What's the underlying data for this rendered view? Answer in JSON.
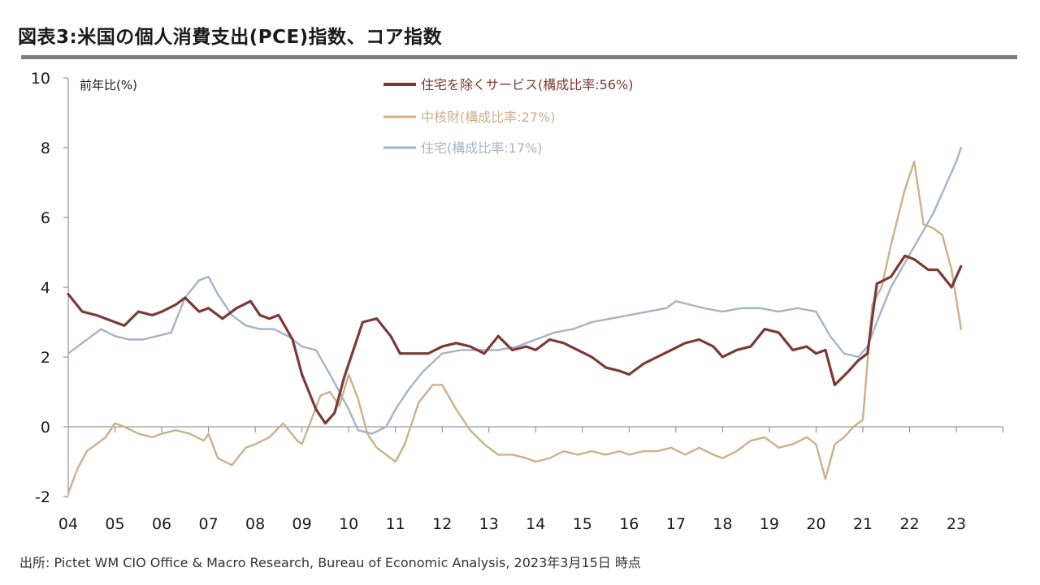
{
  "title": "図表3:米国の個人消費支出(PCE)指数、コア指数",
  "source": "出所: Pictet WM CIO Office & Macro Research, Bureau of Economic Analysis, 2023年3月15日 時点",
  "chart_data": {
    "type": "line",
    "ylabel": "前年比(%)",
    "ylim": [
      -2,
      10
    ],
    "yticks": [
      -2,
      0,
      2,
      4,
      6,
      8,
      10
    ],
    "xlim": [
      2004,
      2023.2
    ],
    "xticks": [
      "04",
      "05",
      "06",
      "07",
      "08",
      "09",
      "10",
      "11",
      "12",
      "13",
      "14",
      "15",
      "16",
      "17",
      "18",
      "19",
      "20",
      "21",
      "22",
      "23"
    ],
    "grid": false,
    "legend_position": "top-center",
    "series": [
      {
        "name": "住宅を除くサービス(構成比率:56%)",
        "color": "#7b3a33",
        "x": [
          2004.0,
          2004.3,
          2004.6,
          2005.0,
          2005.2,
          2005.5,
          2005.8,
          2006.0,
          2006.3,
          2006.5,
          2006.8,
          2007.0,
          2007.3,
          2007.6,
          2007.9,
          2008.1,
          2008.3,
          2008.5,
          2008.8,
          2009.0,
          2009.3,
          2009.5,
          2009.7,
          2009.9,
          2010.1,
          2010.3,
          2010.6,
          2010.9,
          2011.1,
          2011.4,
          2011.7,
          2012.0,
          2012.3,
          2012.6,
          2012.9,
          2013.2,
          2013.5,
          2013.8,
          2014.0,
          2014.3,
          2014.6,
          2014.9,
          2015.2,
          2015.5,
          2015.8,
          2016.0,
          2016.3,
          2016.6,
          2016.9,
          2017.2,
          2017.5,
          2017.8,
          2018.0,
          2018.3,
          2018.6,
          2018.9,
          2019.2,
          2019.5,
          2019.8,
          2020.0,
          2020.2,
          2020.4,
          2020.7,
          2020.9,
          2021.1,
          2021.3,
          2021.6,
          2021.9,
          2022.1,
          2022.4,
          2022.6,
          2022.9,
          2023.0,
          2023.1
        ],
        "values": [
          3.8,
          3.3,
          3.2,
          3.0,
          2.9,
          3.3,
          3.2,
          3.3,
          3.5,
          3.7,
          3.3,
          3.4,
          3.1,
          3.4,
          3.6,
          3.2,
          3.1,
          3.2,
          2.5,
          1.5,
          0.5,
          0.1,
          0.4,
          1.4,
          2.2,
          3.0,
          3.1,
          2.6,
          2.1,
          2.1,
          2.1,
          2.3,
          2.4,
          2.3,
          2.1,
          2.6,
          2.2,
          2.3,
          2.2,
          2.5,
          2.4,
          2.2,
          2.0,
          1.7,
          1.6,
          1.5,
          1.8,
          2.0,
          2.2,
          2.4,
          2.5,
          2.3,
          2.0,
          2.2,
          2.3,
          2.8,
          2.7,
          2.2,
          2.3,
          2.1,
          2.2,
          1.2,
          1.6,
          1.9,
          2.1,
          4.1,
          4.3,
          4.9,
          4.8,
          4.5,
          4.5,
          4.0,
          4.3,
          4.6
        ]
      },
      {
        "name": "中核財(構成比率:27%)",
        "color": "#cdb08a",
        "x": [
          2004.0,
          2004.2,
          2004.4,
          2004.6,
          2004.8,
          2005.0,
          2005.2,
          2005.5,
          2005.8,
          2006.0,
          2006.3,
          2006.6,
          2006.9,
          2007.0,
          2007.2,
          2007.5,
          2007.8,
          2008.0,
          2008.3,
          2008.6,
          2008.9,
          2009.0,
          2009.2,
          2009.4,
          2009.6,
          2009.8,
          2010.0,
          2010.2,
          2010.4,
          2010.6,
          2010.8,
          2011.0,
          2011.2,
          2011.5,
          2011.8,
          2012.0,
          2012.3,
          2012.6,
          2012.9,
          2013.2,
          2013.5,
          2013.8,
          2014.0,
          2014.3,
          2014.6,
          2014.9,
          2015.2,
          2015.5,
          2015.8,
          2016.0,
          2016.3,
          2016.6,
          2016.9,
          2017.2,
          2017.5,
          2017.8,
          2018.0,
          2018.3,
          2018.6,
          2018.9,
          2019.2,
          2019.5,
          2019.8,
          2020.0,
          2020.2,
          2020.4,
          2020.6,
          2020.8,
          2021.0,
          2021.2,
          2021.4,
          2021.6,
          2021.9,
          2022.1,
          2022.3,
          2022.5,
          2022.7,
          2022.9,
          2023.1
        ],
        "values": [
          -1.9,
          -1.2,
          -0.7,
          -0.5,
          -0.3,
          0.1,
          0.0,
          -0.2,
          -0.3,
          -0.2,
          -0.1,
          -0.2,
          -0.4,
          -0.2,
          -0.9,
          -1.1,
          -0.6,
          -0.5,
          -0.3,
          0.1,
          -0.4,
          -0.5,
          0.2,
          0.9,
          1.0,
          0.6,
          1.5,
          0.8,
          -0.2,
          -0.6,
          -0.8,
          -1.0,
          -0.5,
          0.7,
          1.2,
          1.2,
          0.5,
          -0.1,
          -0.5,
          -0.8,
          -0.8,
          -0.9,
          -1.0,
          -0.9,
          -0.7,
          -0.8,
          -0.7,
          -0.8,
          -0.7,
          -0.8,
          -0.7,
          -0.7,
          -0.6,
          -0.8,
          -0.6,
          -0.8,
          -0.9,
          -0.7,
          -0.4,
          -0.3,
          -0.6,
          -0.5,
          -0.3,
          -0.5,
          -1.5,
          -0.5,
          -0.3,
          0.0,
          0.2,
          3.5,
          4.0,
          5.2,
          6.8,
          7.6,
          5.8,
          5.7,
          5.5,
          4.5,
          2.8
        ]
      },
      {
        "name": "住宅(構成比率:17%)",
        "color": "#a3b4c8",
        "x": [
          2004.0,
          2004.2,
          2004.5,
          2004.7,
          2005.0,
          2005.3,
          2005.6,
          2005.9,
          2006.2,
          2006.5,
          2006.8,
          2007.0,
          2007.2,
          2007.5,
          2007.8,
          2008.1,
          2008.4,
          2008.7,
          2009.0,
          2009.3,
          2009.6,
          2009.8,
          2010.0,
          2010.2,
          2010.5,
          2010.8,
          2011.0,
          2011.3,
          2011.6,
          2012.0,
          2012.4,
          2012.8,
          2013.2,
          2013.6,
          2014.0,
          2014.4,
          2014.8,
          2015.2,
          2015.6,
          2016.0,
          2016.4,
          2016.8,
          2017.0,
          2017.3,
          2017.6,
          2018.0,
          2018.4,
          2018.8,
          2019.2,
          2019.6,
          2020.0,
          2020.3,
          2020.6,
          2020.9,
          2021.1,
          2021.3,
          2021.6,
          2021.9,
          2022.2,
          2022.5,
          2022.8,
          2023.0,
          2023.1
        ],
        "values": [
          2.1,
          2.3,
          2.6,
          2.8,
          2.6,
          2.5,
          2.5,
          2.6,
          2.7,
          3.7,
          4.2,
          4.3,
          3.8,
          3.2,
          2.9,
          2.8,
          2.8,
          2.6,
          2.3,
          2.2,
          1.5,
          1.0,
          0.5,
          -0.1,
          -0.2,
          0.0,
          0.5,
          1.1,
          1.6,
          2.1,
          2.2,
          2.2,
          2.2,
          2.3,
          2.5,
          2.7,
          2.8,
          3.0,
          3.1,
          3.2,
          3.3,
          3.4,
          3.6,
          3.5,
          3.4,
          3.3,
          3.4,
          3.4,
          3.3,
          3.4,
          3.3,
          2.6,
          2.1,
          2.0,
          2.3,
          3.0,
          4.0,
          4.7,
          5.4,
          6.1,
          7.0,
          7.6,
          8.0
        ]
      }
    ]
  }
}
